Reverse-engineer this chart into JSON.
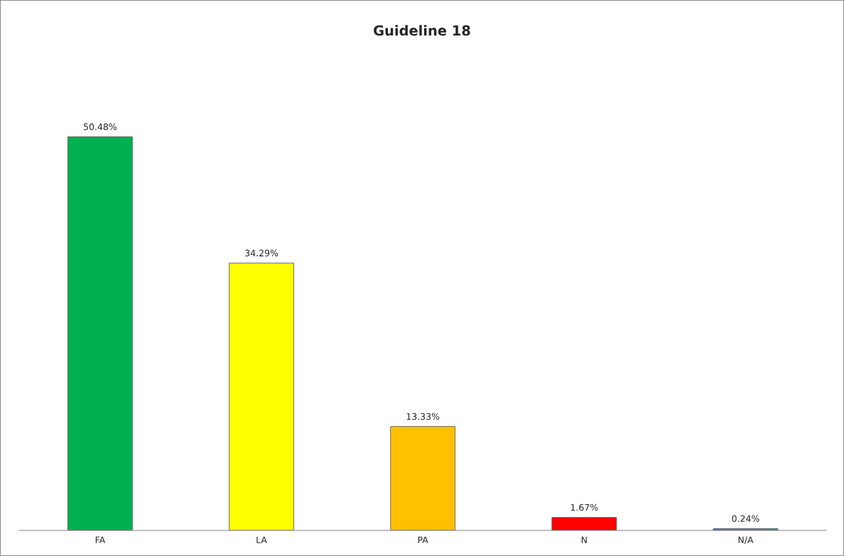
{
  "chart_data": {
    "type": "bar",
    "title": "Guideline 18",
    "categories": [
      "FA",
      "LA",
      "PA",
      "N",
      "N/A"
    ],
    "values": [
      50.48,
      34.29,
      13.33,
      1.67,
      0.24
    ],
    "value_labels": [
      "50.48%",
      "34.29%",
      "13.33%",
      "1.67%",
      "0.24%"
    ],
    "colors": [
      "#00b050",
      "#ffff00",
      "#ffc000",
      "#ff0000",
      "#4f81bd"
    ],
    "grid": false,
    "legend": false
  }
}
